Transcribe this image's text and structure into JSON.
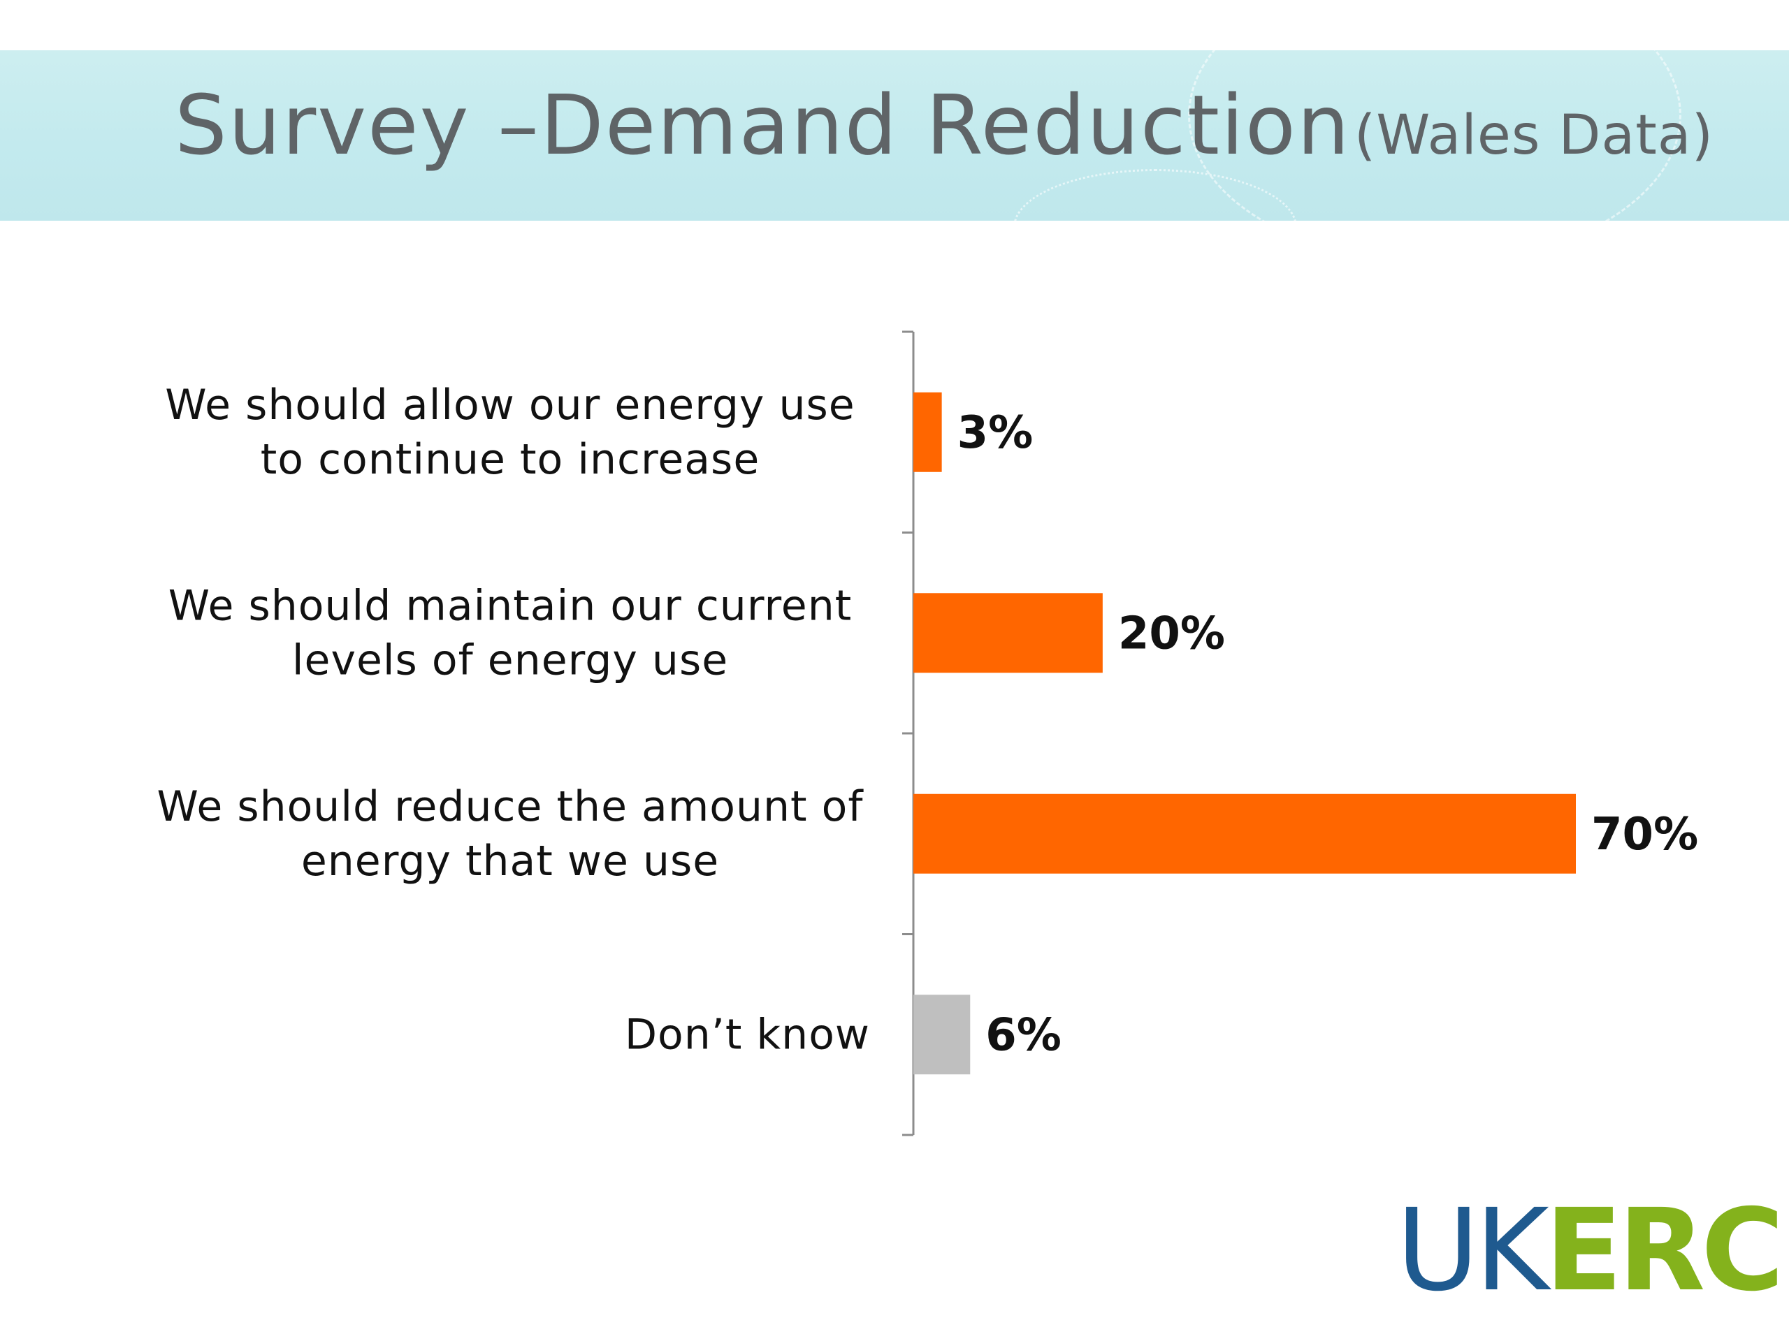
{
  "slide": {
    "title": "Survey –Demand Reduction",
    "subtitle": "(Wales Data)"
  },
  "logo": {
    "part1": "UK",
    "part2": "ERC",
    "color1": "#1f5a8f",
    "color2": "#84b21c"
  },
  "chart_data": {
    "type": "bar",
    "orientation": "horizontal",
    "categories": [
      [
        "We should allow our energy use",
        "to continue to increase"
      ],
      [
        "We should maintain our current",
        "levels of energy use"
      ],
      [
        "We should reduce the amount of",
        "energy that we use"
      ],
      [
        "Don’t know"
      ]
    ],
    "values": [
      3,
      20,
      70,
      6
    ],
    "value_labels": [
      "3%",
      "20%",
      "70%",
      "6%"
    ],
    "colors": [
      "#ff6600",
      "#ff6600",
      "#ff6600",
      "#bfbfbf"
    ],
    "xlim": [
      0,
      70
    ],
    "grid": false,
    "legend": false
  }
}
